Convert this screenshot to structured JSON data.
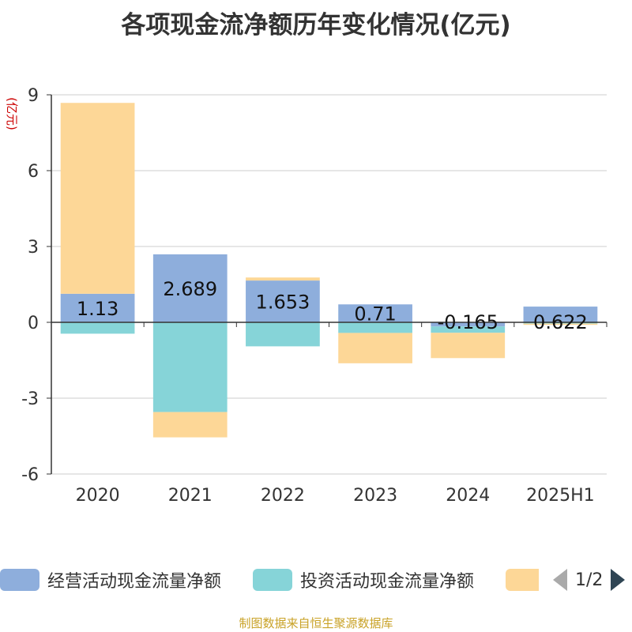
{
  "title": "各项现金流净额历年变化情况(亿元)",
  "source": "制图数据来自恒生聚源数据库",
  "legend": {
    "items": [
      {
        "label": "经营活动现金流量净额",
        "color": "#8eaedc"
      },
      {
        "label": "投资活动现金流量净额",
        "color": "#86d4d8"
      },
      {
        "label": "",
        "color": "#fdd797"
      }
    ],
    "page": "1/2"
  },
  "chart_data": {
    "type": "bar",
    "stacked": true,
    "ylabel": "(亿元)",
    "ylim": [
      -6,
      9
    ],
    "yticks": [
      -6,
      -3,
      0,
      3,
      6,
      9
    ],
    "grid": true,
    "categories": [
      "2020",
      "2021",
      "2022",
      "2023",
      "2024",
      "2025H1"
    ],
    "series": [
      {
        "name": "经营活动现金流量净额",
        "color": "#8eaedc",
        "values": [
          1.13,
          2.689,
          1.653,
          0.71,
          -0.165,
          0.622
        ],
        "labels": [
          "1.13",
          "2.689",
          "1.653",
          "0.71",
          "-0.165",
          "0.622"
        ]
      },
      {
        "name": "投资活动现金流量净额",
        "color": "#86d4d8",
        "values": [
          -0.45,
          -3.55,
          -0.95,
          -0.42,
          -0.25,
          -0.05
        ]
      },
      {
        "color": "#fdd797",
        "values": [
          7.55,
          -1.0,
          0.12,
          -1.2,
          -1.0,
          -0.05
        ]
      }
    ]
  }
}
